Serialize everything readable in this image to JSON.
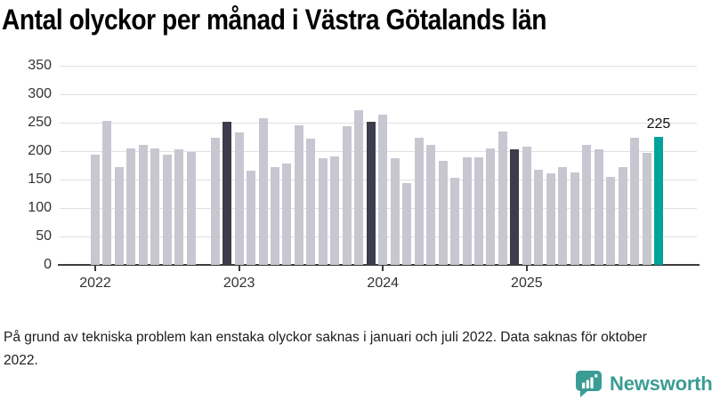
{
  "title": "Antal olyckor per månad i Västra Götalands län",
  "footnote": "På grund av tekniska problem kan enstaka olyckor saknas i januari och juli 2022. Data saknas för oktober 2022.",
  "logo": {
    "text": "Newsworthy",
    "color": "#3b9c95"
  },
  "chart_data": {
    "type": "bar",
    "title": "Antal olyckor per månad i Västra Götalands län",
    "xlabel": "",
    "ylabel": "",
    "ylim": [
      0,
      350
    ],
    "grid": true,
    "yticks": [
      0,
      50,
      100,
      150,
      200,
      250,
      300,
      350
    ],
    "x_year_ticks": [
      "2022",
      "2023",
      "2024",
      "2025"
    ],
    "annotation": {
      "month": "dec 2025",
      "text": "225"
    },
    "colors": {
      "bar": "#c7c7d1",
      "bar_highlight": "#3c3c4c",
      "bar_latest": "#00a39a",
      "grid": "#e0e0e3",
      "axis": "#3d3d3d"
    },
    "months": [
      {
        "label": "jan 2022",
        "value": 194,
        "role": "default"
      },
      {
        "label": "feb 2022",
        "value": 252,
        "role": "default"
      },
      {
        "label": "mar 2022",
        "value": 171,
        "role": "default"
      },
      {
        "label": "apr 2022",
        "value": 204,
        "role": "default"
      },
      {
        "label": "maj 2022",
        "value": 210,
        "role": "default"
      },
      {
        "label": "jun 2022",
        "value": 204,
        "role": "default"
      },
      {
        "label": "jul 2022",
        "value": 194,
        "role": "default"
      },
      {
        "label": "aug 2022",
        "value": 202,
        "role": "default"
      },
      {
        "label": "sep 2022",
        "value": 198,
        "role": "default"
      },
      {
        "label": "okt 2022",
        "value": null,
        "role": "missing"
      },
      {
        "label": "nov 2022",
        "value": 223,
        "role": "default"
      },
      {
        "label": "dec 2022",
        "value": 251,
        "role": "dark"
      },
      {
        "label": "jan 2023",
        "value": 233,
        "role": "default"
      },
      {
        "label": "feb 2023",
        "value": 166,
        "role": "default"
      },
      {
        "label": "mar 2023",
        "value": 258,
        "role": "default"
      },
      {
        "label": "apr 2023",
        "value": 171,
        "role": "default"
      },
      {
        "label": "maj 2023",
        "value": 178,
        "role": "default"
      },
      {
        "label": "jun 2023",
        "value": 245,
        "role": "default"
      },
      {
        "label": "jul 2023",
        "value": 221,
        "role": "default"
      },
      {
        "label": "aug 2023",
        "value": 187,
        "role": "default"
      },
      {
        "label": "sep 2023",
        "value": 190,
        "role": "default"
      },
      {
        "label": "okt 2023",
        "value": 243,
        "role": "default"
      },
      {
        "label": "nov 2023",
        "value": 271,
        "role": "default"
      },
      {
        "label": "dec 2023",
        "value": 251,
        "role": "dark"
      },
      {
        "label": "jan 2024",
        "value": 263,
        "role": "default"
      },
      {
        "label": "feb 2024",
        "value": 187,
        "role": "default"
      },
      {
        "label": "mar 2024",
        "value": 143,
        "role": "default"
      },
      {
        "label": "apr 2024",
        "value": 223,
        "role": "default"
      },
      {
        "label": "maj 2024",
        "value": 210,
        "role": "default"
      },
      {
        "label": "jun 2024",
        "value": 182,
        "role": "default"
      },
      {
        "label": "jul 2024",
        "value": 153,
        "role": "default"
      },
      {
        "label": "aug 2024",
        "value": 188,
        "role": "default"
      },
      {
        "label": "sep 2024",
        "value": 189,
        "role": "default"
      },
      {
        "label": "okt 2024",
        "value": 204,
        "role": "default"
      },
      {
        "label": "nov 2024",
        "value": 234,
        "role": "default"
      },
      {
        "label": "dec 2024",
        "value": 202,
        "role": "dark"
      },
      {
        "label": "jan 2025",
        "value": 207,
        "role": "default"
      },
      {
        "label": "feb 2025",
        "value": 167,
        "role": "default"
      },
      {
        "label": "mar 2025",
        "value": 161,
        "role": "default"
      },
      {
        "label": "apr 2025",
        "value": 171,
        "role": "default"
      },
      {
        "label": "maj 2025",
        "value": 162,
        "role": "default"
      },
      {
        "label": "jun 2025",
        "value": 210,
        "role": "default"
      },
      {
        "label": "jul 2025",
        "value": 202,
        "role": "default"
      },
      {
        "label": "aug 2025",
        "value": 155,
        "role": "default"
      },
      {
        "label": "sep 2025",
        "value": 172,
        "role": "default"
      },
      {
        "label": "okt 2025",
        "value": 223,
        "role": "default"
      },
      {
        "label": "nov 2025",
        "value": 196,
        "role": "default"
      },
      {
        "label": "dec 2025",
        "value": 225,
        "role": "latest"
      }
    ]
  }
}
